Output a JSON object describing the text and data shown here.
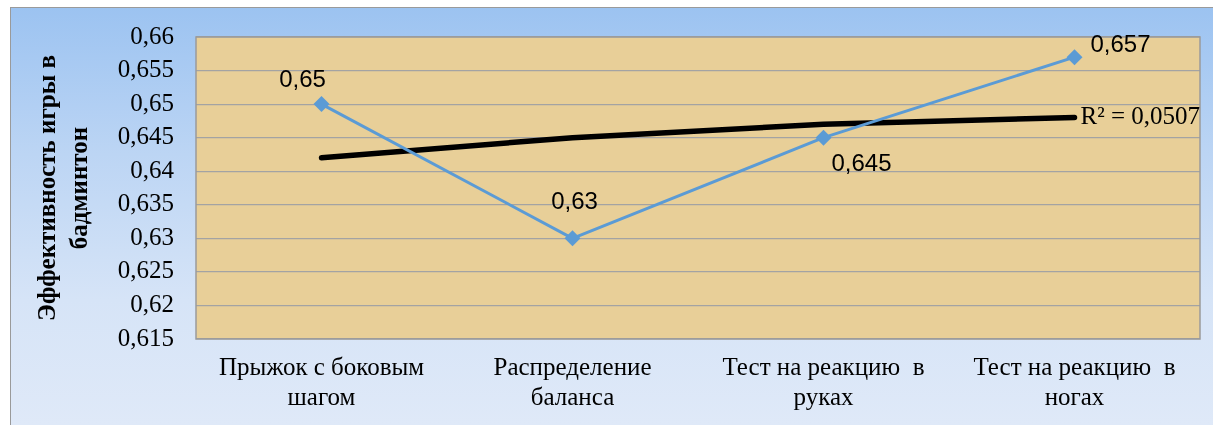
{
  "chart_data": {
    "type": "line",
    "categories": [
      "Прыжок с боковым шагом",
      "Распределение баланса",
      "Тест на реакцию  в руках",
      "Тест на реакцию  в ногах"
    ],
    "ylabel": "Эффективность игры в бадминтон",
    "series": [
      {
        "color": "#5b9bd5",
        "values": [
          0.65,
          0.63,
          0.645,
          0.657
        ],
        "value_labels": [
          "0,65",
          "0,63",
          "0,645",
          "0,657"
        ]
      },
      {
        "color": "#000000",
        "values": [
          0.642,
          0.645,
          0.647,
          0.648
        ],
        "marker": "none"
      }
    ],
    "ylim": [
      0.615,
      0.66
    ],
    "yticks": [
      {
        "value": 0.615,
        "label": "0,615"
      },
      {
        "value": 0.62,
        "label": "0,62"
      },
      {
        "value": 0.625,
        "label": "0,625"
      },
      {
        "value": 0.63,
        "label": "0,63"
      },
      {
        "value": 0.635,
        "label": "0,635"
      },
      {
        "value": 0.64,
        "label": "0,64"
      },
      {
        "value": 0.645,
        "label": "0,645"
      },
      {
        "value": 0.65,
        "label": "0,65"
      },
      {
        "value": 0.655,
        "label": "0,655"
      },
      {
        "value": 0.66,
        "label": "0,66"
      }
    ],
    "grid": "y",
    "marker": "diamond",
    "annotations": [
      {
        "text": "R² = 0,0507",
        "x": "Тест на реакцию  в ногах",
        "y": 0.648
      }
    ]
  }
}
